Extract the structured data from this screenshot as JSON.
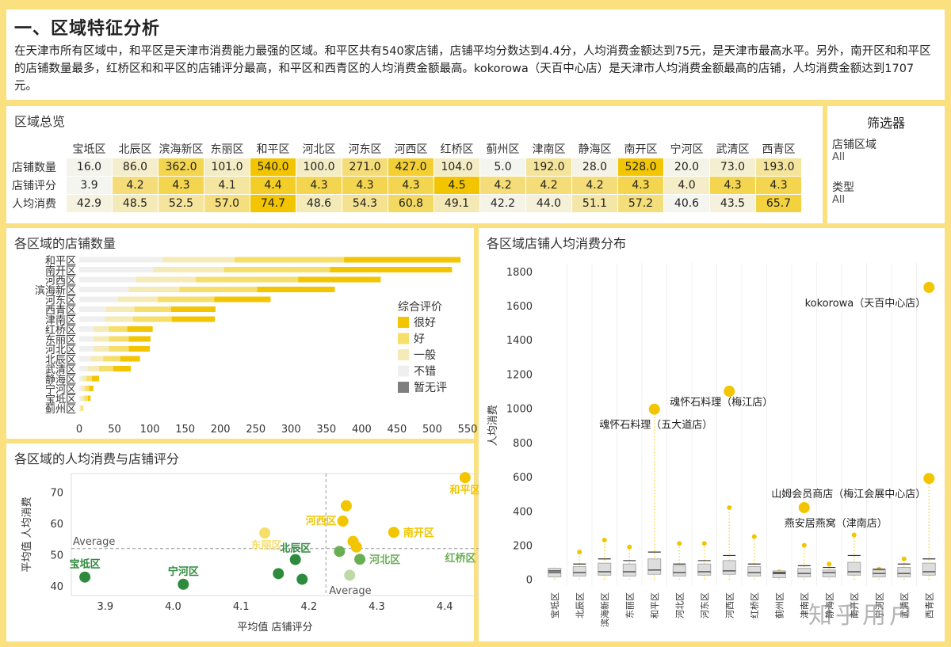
{
  "header": {
    "title": "一、区域特征分析",
    "summary": "在天津市所有区域中，和平区是天津市消费能力最强的区域。和平区共有540家店铺，店铺平均分数达到4.4分，人均消费金额达到75元，是天津市最高水平。另外，南开区和和平区的店铺数量最多，红桥区和和平区的店铺评分最高，和平区和西青区的人均消费金额最高。kokorowa（天百中心店）是天津市人均消费金额最高的店铺，人均消费金额达到1707元。"
  },
  "overview": {
    "title": "区域总览",
    "districts": [
      "宝坻区",
      "北辰区",
      "滨海新区",
      "东丽区",
      "和平区",
      "河北区",
      "河东区",
      "河西区",
      "红桥区",
      "蓟州区",
      "津南区",
      "静海区",
      "南开区",
      "宁河区",
      "武清区",
      "西青区"
    ],
    "rows": [
      {
        "label": "店铺数量",
        "values": [
          "16.0",
          "86.0",
          "362.0",
          "101.0",
          "540.0",
          "100.0",
          "271.0",
          "427.0",
          "104.0",
          "5.0",
          "192.0",
          "28.0",
          "528.0",
          "20.0",
          "73.0",
          "193.0"
        ]
      },
      {
        "label": "店铺评分",
        "values": [
          "3.9",
          "4.2",
          "4.3",
          "4.1",
          "4.4",
          "4.3",
          "4.3",
          "4.3",
          "4.5",
          "4.2",
          "4.2",
          "4.2",
          "4.3",
          "4.0",
          "4.3",
          "4.3"
        ]
      },
      {
        "label": "人均消费",
        "values": [
          "42.9",
          "48.5",
          "52.5",
          "57.0",
          "74.7",
          "48.6",
          "54.3",
          "60.8",
          "49.1",
          "42.2",
          "44.0",
          "51.1",
          "57.2",
          "40.6",
          "43.5",
          "65.7"
        ]
      }
    ]
  },
  "filter": {
    "title": "筛选器",
    "f1_label": "店铺区域",
    "f1_value": "All",
    "f2_label": "类型",
    "f2_value": "All"
  },
  "colors": {
    "very_good": "#F2C500",
    "good": "#F6DE6A",
    "ok": "#F5EBB8",
    "fine": "#EFEFEF",
    "none": "#7F7F7F",
    "green_dark": "#2E8B3E",
    "green_mid": "#6AAE54",
    "green_light": "#BFD8A8"
  },
  "chart_data": [
    {
      "type": "bar",
      "title": "各区域的店铺数量",
      "orientation": "horizontal",
      "stacked": true,
      "categories": [
        "和平区",
        "南开区",
        "河西区",
        "滨海新区",
        "河东区",
        "西青区",
        "津南区",
        "红桥区",
        "东丽区",
        "河北区",
        "北辰区",
        "武清区",
        "静海区",
        "宁河区",
        "宝坻区",
        "蓟州区"
      ],
      "series": [
        {
          "name": "不错",
          "values": [
            118,
            105,
            80,
            70,
            55,
            38,
            36,
            20,
            20,
            20,
            16,
            12,
            4,
            3,
            3,
            1
          ]
        },
        {
          "name": "一般",
          "values": [
            102,
            100,
            85,
            72,
            56,
            40,
            40,
            22,
            22,
            22,
            18,
            16,
            6,
            5,
            4,
            2
          ]
        },
        {
          "name": "好",
          "values": [
            155,
            150,
            145,
            110,
            80,
            52,
            55,
            26,
            28,
            28,
            24,
            20,
            8,
            6,
            5,
            1
          ]
        },
        {
          "name": "很好",
          "values": [
            165,
            173,
            117,
            110,
            80,
            63,
            61,
            36,
            31,
            30,
            28,
            25,
            10,
            6,
            4,
            1
          ]
        }
      ],
      "legend_title": "综合评价",
      "legend": [
        "很好",
        "好",
        "一般",
        "不错",
        "暂无评"
      ],
      "xticks": [
        "0",
        "50",
        "100",
        "150",
        "200",
        "250",
        "300",
        "350",
        "400",
        "450",
        "500",
        "550"
      ],
      "xlim": [
        0,
        550
      ]
    },
    {
      "type": "scatter",
      "title": "各区域的人均消费与店铺评分",
      "xlabel": "平均值 店铺评分",
      "ylabel": "平均值 人均消费",
      "xticks": [
        "3.9",
        "4.0",
        "4.1",
        "4.2",
        "4.3",
        "4.4"
      ],
      "yticks": [
        "40",
        "50",
        "60",
        "70"
      ],
      "xlim": [
        3.85,
        4.45
      ],
      "ylim": [
        37,
        76
      ],
      "average_x_label": "Average",
      "average_y_label": "Average",
      "avg_x": 4.225,
      "avg_y": 52,
      "points": [
        {
          "label": "宝坻区",
          "x": 3.87,
          "y": 42.9,
          "color": "#2E8B3E",
          "show": true
        },
        {
          "label": "宁河区",
          "x": 4.015,
          "y": 40.6,
          "color": "#2E8B3E",
          "show": true
        },
        {
          "label": "东丽区",
          "x": 4.135,
          "y": 57.0,
          "color": "#F6DE6A",
          "show": true
        },
        {
          "label": "北辰区",
          "x": 4.18,
          "y": 48.5,
          "color": "#2E8B3E",
          "show": true
        },
        {
          "label": "",
          "x": 4.155,
          "y": 44.0,
          "color": "#2E8B3E",
          "show": false
        },
        {
          "label": "",
          "x": 4.19,
          "y": 42.2,
          "color": "#2E8B3E",
          "show": false
        },
        {
          "label": "河西区",
          "x": 4.25,
          "y": 60.8,
          "color": "#F2C500",
          "show": true
        },
        {
          "label": "",
          "x": 4.255,
          "y": 65.7,
          "color": "#F2C500",
          "show": false
        },
        {
          "label": "",
          "x": 4.265,
          "y": 54.3,
          "color": "#F2C500",
          "show": false
        },
        {
          "label": "",
          "x": 4.27,
          "y": 52.5,
          "color": "#F2C500",
          "show": false
        },
        {
          "label": "",
          "x": 4.245,
          "y": 51.1,
          "color": "#6AAE54",
          "show": false
        },
        {
          "label": "",
          "x": 4.26,
          "y": 43.5,
          "color": "#BFD8A8",
          "show": false
        },
        {
          "label": "河北区",
          "x": 4.275,
          "y": 48.6,
          "color": "#6AAE54",
          "show": true
        },
        {
          "label": "南开区",
          "x": 4.325,
          "y": 57.2,
          "color": "#F2C500",
          "show": true
        },
        {
          "label": "和平区",
          "x": 4.43,
          "y": 74.7,
          "color": "#F2C500",
          "show": true
        },
        {
          "label": "红桥区",
          "x": 4.46,
          "y": 49.1,
          "color": "#6AAE54",
          "show": true
        }
      ]
    },
    {
      "type": "box",
      "title": "各区域店铺人均消费分布",
      "ylabel": "人均消费",
      "yticks": [
        "0",
        "200",
        "400",
        "600",
        "800",
        "1000",
        "1200",
        "1400",
        "1600",
        "1800"
      ],
      "ylim": [
        -20,
        1850
      ],
      "categories": [
        "宝坻区",
        "北辰区",
        "滨海新区",
        "东丽区",
        "和平区",
        "河北区",
        "河东区",
        "河西区",
        "红桥区",
        "蓟州区",
        "津南区",
        "静海区",
        "南开区",
        "宁河区",
        "武清区",
        "西青区"
      ],
      "q1": [
        15,
        20,
        25,
        20,
        30,
        20,
        25,
        30,
        20,
        10,
        15,
        15,
        25,
        15,
        15,
        25
      ],
      "median": [
        40,
        40,
        45,
        45,
        55,
        40,
        45,
        50,
        40,
        35,
        35,
        40,
        45,
        35,
        35,
        45
      ],
      "q3": [
        65,
        75,
        95,
        90,
        120,
        80,
        90,
        110,
        75,
        50,
        65,
        55,
        100,
        55,
        70,
        95
      ],
      "whisker_high": [
        50,
        90,
        120,
        110,
        160,
        90,
        110,
        140,
        90,
        40,
        80,
        70,
        140,
        60,
        90,
        120
      ],
      "max": [
        55,
        160,
        230,
        190,
        1000,
        210,
        210,
        420,
        250,
        45,
        200,
        90,
        260,
        60,
        120,
        590
      ],
      "outliers": [
        {
          "label": "kokorowa（天百中心店）",
          "district": "西青区",
          "y": 1707
        },
        {
          "label": "魂怀石料理（梅江店）",
          "district": "河西区",
          "y": 1100
        },
        {
          "label": "魂怀石料理（五大道店）",
          "district": "和平区",
          "y": 995
        },
        {
          "label": "山姆会员商店（梅江会展中心店）",
          "district": "西青区",
          "y": 590
        },
        {
          "label": "燕安居燕窝（津南店）",
          "district": "津南区",
          "y": 420
        }
      ]
    }
  ],
  "watermark": "知乎用户"
}
